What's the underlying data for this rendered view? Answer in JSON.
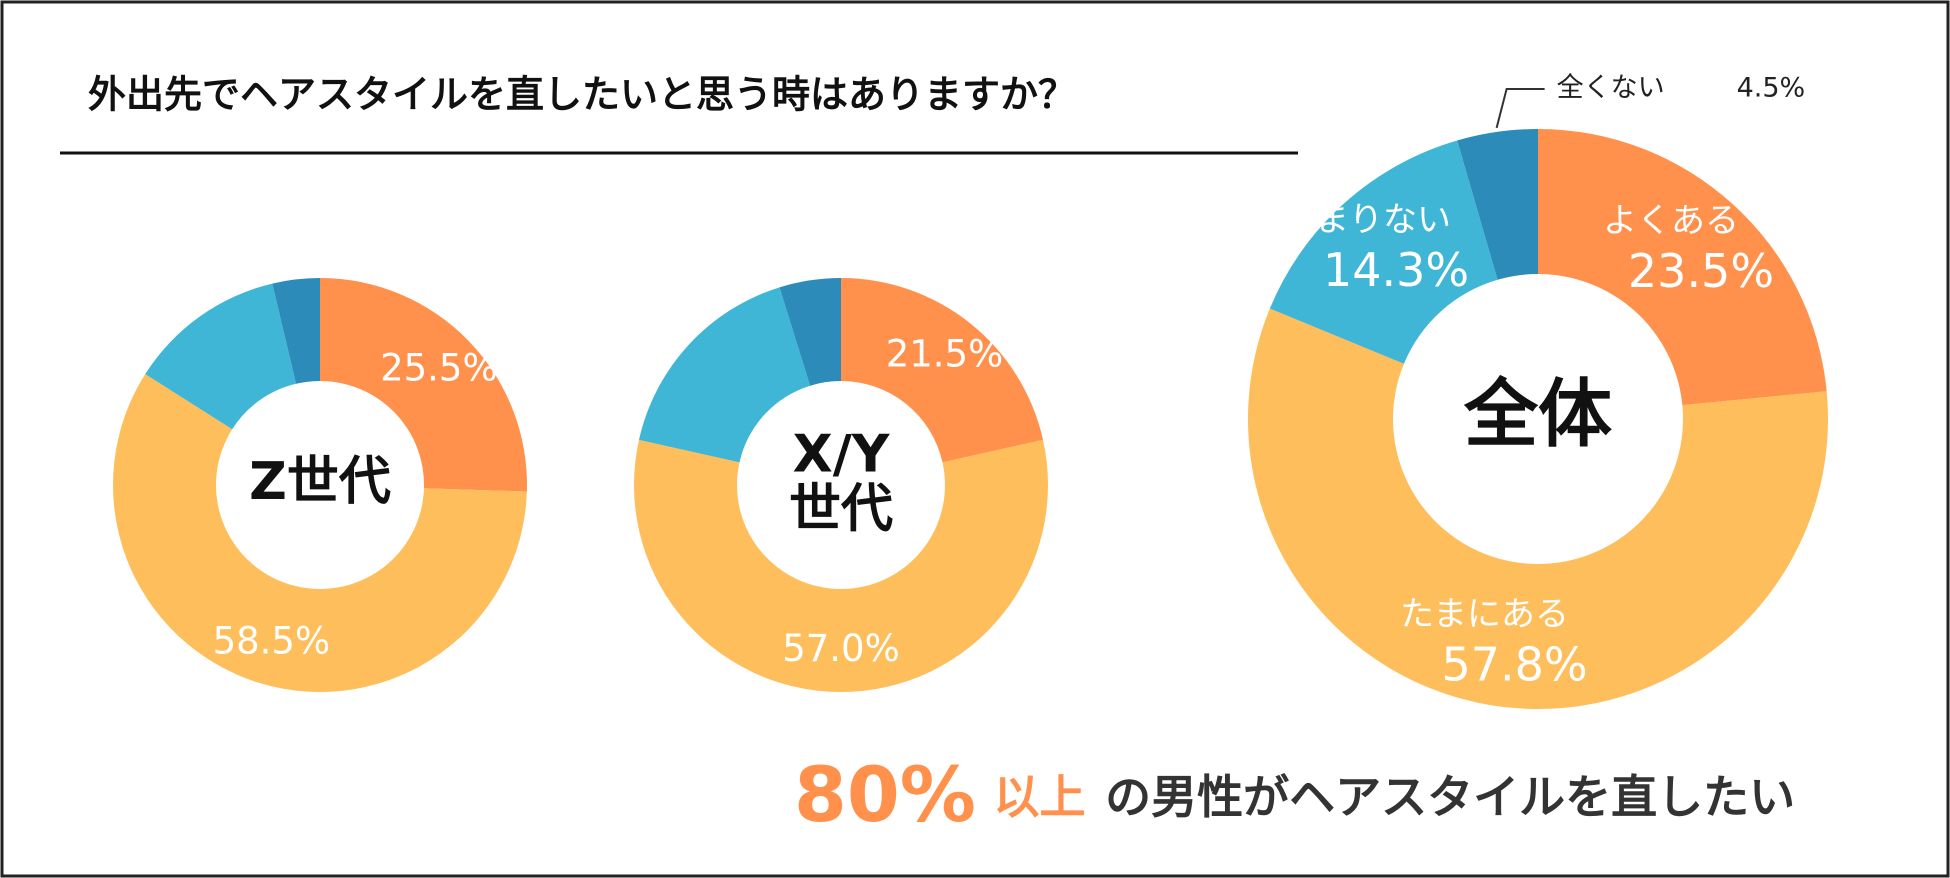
{
  "title": "外出先でヘアスタイルを直したいと思う時はありますか？",
  "conclusion": {
    "number": "80%",
    "suffix": "以上",
    "text": "の男性がヘアスタイルを直したい"
  },
  "chart_data": [
    {
      "type": "donut",
      "center_label": [
        "Z世代"
      ],
      "categories": [
        null,
        null,
        null,
        null
      ],
      "values": [
        25.5,
        58.5,
        12.3,
        3.7
      ],
      "value_labels": [
        "25.5%",
        "58.5%",
        null,
        null
      ],
      "colors": [
        "#FF914D",
        "#FFBE5C",
        "#40B6D6",
        "#2D8BBA"
      ]
    },
    {
      "type": "donut",
      "center_label": [
        "X/Y",
        "世代"
      ],
      "categories": [
        null,
        null,
        null,
        null
      ],
      "values": [
        21.5,
        57.0,
        16.7,
        4.8
      ],
      "value_labels": [
        "21.5%",
        "57.0%",
        null,
        null
      ],
      "colors": [
        "#FF914D",
        "#FFBE5C",
        "#40B6D6",
        "#2D8BBA"
      ]
    },
    {
      "type": "donut",
      "center_label": [
        "全体"
      ],
      "categories": [
        "よくある",
        "たまにある",
        "あまりない",
        "全くない"
      ],
      "values": [
        23.5,
        57.8,
        14.3,
        4.5
      ],
      "value_labels": [
        "23.5%",
        "57.8%",
        "14.3%",
        "4.5%"
      ],
      "colors": [
        "#FF914D",
        "#FFBE5C",
        "#40B6D6",
        "#2D8BBA"
      ]
    }
  ]
}
